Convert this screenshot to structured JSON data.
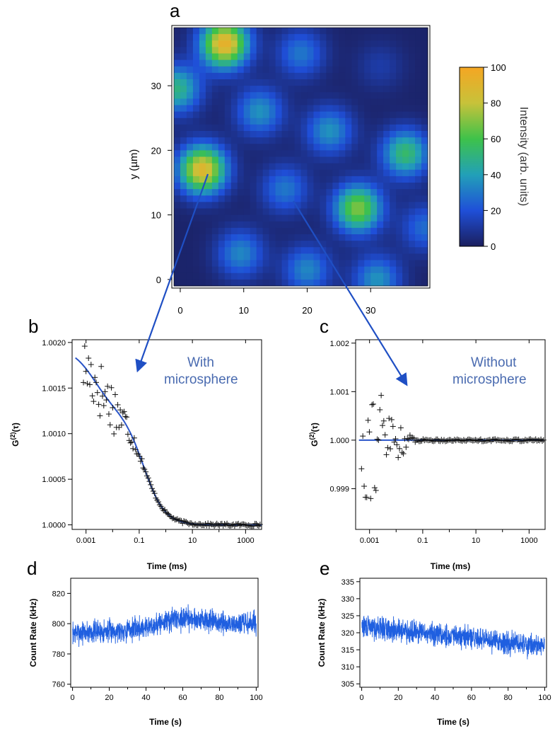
{
  "chart_data": [
    {
      "panel": "a",
      "type": "heatmap",
      "ylabel": "y (µm)",
      "xlim": [
        -1,
        39
      ],
      "ylim": [
        -1,
        39
      ],
      "xticks": [
        0,
        10,
        20,
        30
      ],
      "yticks": [
        0,
        10,
        20,
        30
      ],
      "colorbar": {
        "label": "Intensity (arb. units)",
        "range": [
          0,
          100
        ],
        "ticks": [
          0,
          20,
          40,
          60,
          80,
          100
        ]
      },
      "spots": [
        {
          "x": 7,
          "y": 36.5,
          "peak": 92
        },
        {
          "x": 19,
          "y": 35,
          "peak": 28
        },
        {
          "x": 31.5,
          "y": 33,
          "peak": 10
        },
        {
          "x": -0.5,
          "y": 29.5,
          "peak": 48
        },
        {
          "x": 12.5,
          "y": 26,
          "peak": 35
        },
        {
          "x": 23.5,
          "y": 23,
          "peak": 35
        },
        {
          "x": 35.5,
          "y": 19.5,
          "peak": 52
        },
        {
          "x": 3.5,
          "y": 17,
          "peak": 88
        },
        {
          "x": 16.5,
          "y": 14,
          "peak": 28
        },
        {
          "x": 28,
          "y": 11,
          "peak": 68
        },
        {
          "x": 38.5,
          "y": 8,
          "peak": 25
        },
        {
          "x": 9.5,
          "y": 4,
          "peak": 32
        },
        {
          "x": 20,
          "y": 1.5,
          "peak": 32
        },
        {
          "x": 31,
          "y": 0,
          "peak": 35
        }
      ]
    },
    {
      "panel": "b",
      "type": "scatter",
      "xlabel": "Time (ms)",
      "ylabel": "G(2)(τ)",
      "xscale": "log",
      "xlim": [
        0.0003,
        4000
      ],
      "ylim": [
        0.99995,
        1.00203
      ],
      "xticks": [
        0.001,
        0.1,
        10,
        1000
      ],
      "xtick_labels": [
        "0.001",
        "0.1",
        "10",
        "1000"
      ],
      "yticks": [
        1.0,
        1.0005,
        1.001,
        1.0015,
        1.002
      ],
      "ytick_labels": [
        "1.0000",
        "1.0005",
        "1.0010",
        "1.0015",
        "1.0020"
      ],
      "annotation": [
        "With",
        "microsphere"
      ],
      "series": [
        {
          "kind": "data-points",
          "fit_ref": true
        },
        {
          "kind": "fit-line"
        }
      ]
    },
    {
      "panel": "c",
      "type": "scatter",
      "xlabel": "Time (ms)",
      "ylabel": "G(2)(τ)",
      "xscale": "log",
      "xlim": [
        0.0003,
        4000
      ],
      "ylim": [
        0.99816,
        1.00207
      ],
      "xticks": [
        0.001,
        0.1,
        10,
        1000
      ],
      "xtick_labels": [
        "0.001",
        "0.1",
        "10",
        "1000"
      ],
      "yticks": [
        0.999,
        1.0,
        1.001,
        1.002
      ],
      "ytick_labels": [
        "0.999",
        "1.000",
        "1.001",
        "1.002"
      ],
      "annotation": [
        "Without",
        "microsphere"
      ],
      "fit_value": 1.0
    },
    {
      "panel": "d",
      "type": "line",
      "xlabel": "Time (s)",
      "ylabel": "Count Rate (kHz)",
      "xlim": [
        -1,
        101
      ],
      "ylim": [
        758,
        830
      ],
      "xticks": [
        0,
        20,
        40,
        60,
        80,
        100
      ],
      "yticks": [
        760,
        780,
        800,
        820
      ],
      "mean_start": 794,
      "mean_end": 800,
      "bump_center": 60,
      "bump_height": 6,
      "noise": 7
    },
    {
      "panel": "e",
      "type": "line",
      "xlabel": "Time (s)",
      "ylabel": "Count Rate (kHz)",
      "xlim": [
        -1,
        101
      ],
      "ylim": [
        304,
        336
      ],
      "xticks": [
        0,
        20,
        40,
        60,
        80,
        100
      ],
      "yticks": [
        305,
        310,
        315,
        320,
        325,
        330,
        335
      ],
      "mean_start": 322,
      "mean_end": 316,
      "noise": 3
    }
  ],
  "labels": {
    "a": "a",
    "b": "b",
    "c": "c",
    "d": "d",
    "e": "e"
  }
}
